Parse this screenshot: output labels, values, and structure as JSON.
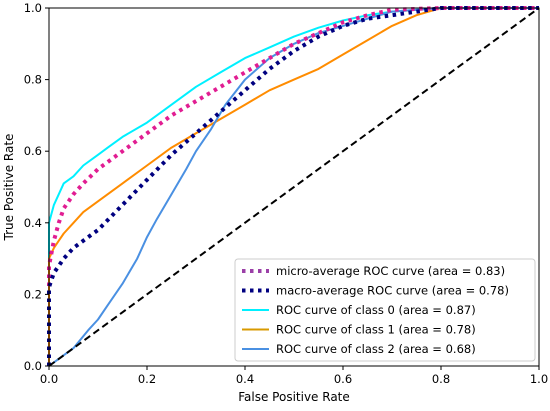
{
  "chart_data": {
    "type": "line",
    "title": "",
    "xlabel": "False Positive Rate",
    "ylabel": "True Positive Rate",
    "xlim": [
      0.0,
      1.0
    ],
    "ylim": [
      0.0,
      1.0
    ],
    "grid": false,
    "legend_position": "lower-right",
    "x_ticks": [
      "0.0",
      "0.2",
      "0.4",
      "0.6",
      "0.8",
      "1.0"
    ],
    "y_ticks": [
      "0.0",
      "0.2",
      "0.4",
      "0.6",
      "0.8",
      "1.0"
    ],
    "series": [
      {
        "name": "ROC curve of class 0 (area = 0.87)",
        "color": "#00f0ff",
        "style": "solid",
        "x": [
          0,
          0,
          0.01,
          0.02,
          0.03,
          0.05,
          0.07,
          0.1,
          0.12,
          0.15,
          0.2,
          0.25,
          0.3,
          0.35,
          0.4,
          0.45,
          0.5,
          0.55,
          0.6,
          0.65,
          0.7,
          0.8,
          0.9,
          1.0
        ],
        "y": [
          0,
          0.4,
          0.45,
          0.48,
          0.51,
          0.53,
          0.56,
          0.59,
          0.61,
          0.64,
          0.68,
          0.73,
          0.78,
          0.82,
          0.86,
          0.89,
          0.92,
          0.945,
          0.965,
          0.98,
          0.99,
          1.0,
          1.0,
          1.0
        ]
      },
      {
        "name": "ROC curve of class 1 (area = 0.78)",
        "color": "#ff8c00",
        "style": "solid",
        "x": [
          0,
          0,
          0.01,
          0.02,
          0.03,
          0.05,
          0.07,
          0.1,
          0.15,
          0.2,
          0.25,
          0.3,
          0.35,
          0.4,
          0.45,
          0.5,
          0.55,
          0.6,
          0.65,
          0.7,
          0.75,
          0.8,
          0.9,
          1.0
        ],
        "y": [
          0,
          0.3,
          0.33,
          0.35,
          0.37,
          0.4,
          0.43,
          0.46,
          0.51,
          0.56,
          0.61,
          0.65,
          0.69,
          0.73,
          0.77,
          0.8,
          0.83,
          0.87,
          0.91,
          0.95,
          0.98,
          1.0,
          1.0,
          1.0
        ]
      },
      {
        "name": "ROC curve of class 2 (area = 0.68)",
        "color": "#4a90e2",
        "style": "solid",
        "x": [
          0,
          0.02,
          0.05,
          0.08,
          0.1,
          0.12,
          0.15,
          0.18,
          0.2,
          0.22,
          0.25,
          0.28,
          0.3,
          0.33,
          0.36,
          0.4,
          0.45,
          0.5,
          0.55,
          0.6,
          0.65,
          0.7,
          0.8,
          0.9,
          1.0
        ],
        "y": [
          0,
          0.02,
          0.05,
          0.1,
          0.13,
          0.17,
          0.23,
          0.3,
          0.36,
          0.41,
          0.48,
          0.55,
          0.6,
          0.66,
          0.73,
          0.8,
          0.86,
          0.9,
          0.93,
          0.95,
          0.97,
          0.99,
          1.0,
          1.0,
          1.0
        ]
      },
      {
        "name": "micro-average ROC curve (area = 0.83)",
        "color": "#e11d92",
        "style": "dotted",
        "x": [
          0,
          0,
          0.01,
          0.02,
          0.03,
          0.05,
          0.07,
          0.1,
          0.15,
          0.2,
          0.25,
          0.3,
          0.35,
          0.4,
          0.45,
          0.5,
          0.55,
          0.6,
          0.65,
          0.7,
          0.8,
          0.9,
          1.0
        ],
        "y": [
          0,
          0.28,
          0.35,
          0.4,
          0.44,
          0.48,
          0.51,
          0.55,
          0.6,
          0.65,
          0.7,
          0.74,
          0.78,
          0.82,
          0.86,
          0.9,
          0.93,
          0.96,
          0.98,
          0.995,
          1.0,
          1.0,
          1.0
        ]
      },
      {
        "name": "macro-average ROC curve (area = 0.78)",
        "color": "#000080",
        "style": "dotted",
        "x": [
          0,
          0,
          0.01,
          0.02,
          0.03,
          0.05,
          0.08,
          0.1,
          0.15,
          0.2,
          0.25,
          0.3,
          0.35,
          0.4,
          0.45,
          0.5,
          0.55,
          0.6,
          0.65,
          0.7,
          0.75,
          0.8,
          0.9,
          1.0
        ],
        "y": [
          0,
          0.22,
          0.26,
          0.28,
          0.3,
          0.33,
          0.36,
          0.38,
          0.45,
          0.52,
          0.59,
          0.65,
          0.71,
          0.77,
          0.83,
          0.88,
          0.92,
          0.95,
          0.97,
          0.98,
          0.99,
          1.0,
          1.0,
          1.0
        ]
      },
      {
        "name": "",
        "color": "#000000",
        "style": "dashed",
        "x": [
          0,
          1
        ],
        "y": [
          0,
          1
        ]
      }
    ],
    "legend_items": [
      {
        "label": "micro-average ROC curve (area = 0.83)",
        "color": "#9b3fa7",
        "style": "dotted"
      },
      {
        "label": "macro-average ROC curve (area = 0.78)",
        "color": "#000080",
        "style": "dotted"
      },
      {
        "label": "ROC curve of class 0 (area = 0.87)",
        "color": "#00f0ff",
        "style": "solid"
      },
      {
        "label": "ROC curve of class 1 (area = 0.78)",
        "color": "#d89a00",
        "style": "solid"
      },
      {
        "label": "ROC curve of class 2 (area = 0.68)",
        "color": "#4a90e2",
        "style": "solid"
      }
    ]
  }
}
